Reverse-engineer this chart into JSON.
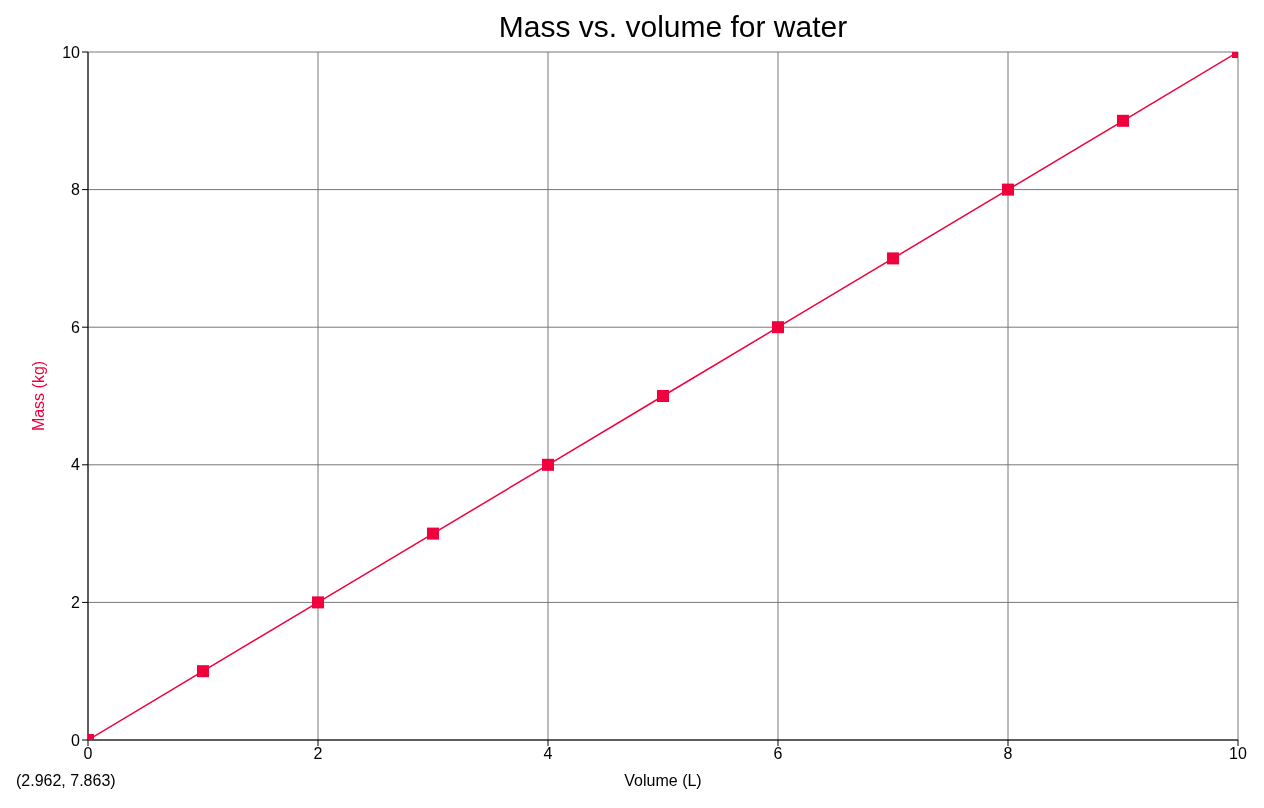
{
  "chart_data": {
    "type": "line",
    "title": "Mass vs. volume for water",
    "xlabel": "Volume (L)",
    "ylabel": "Mass (kg)",
    "x": [
      0,
      1,
      2,
      3,
      4,
      5,
      6,
      7,
      8,
      9,
      10
    ],
    "series": [
      {
        "color": "#f0003c",
        "values": [
          0,
          1,
          2,
          3,
          4,
          5,
          6,
          7,
          8,
          9,
          10
        ]
      }
    ],
    "xlim": [
      0,
      10
    ],
    "xticks": [
      0,
      2,
      4,
      6,
      8,
      10
    ],
    "ylim": [
      0,
      10
    ],
    "yticks": [
      0,
      2,
      4,
      6,
      8,
      10
    ],
    "grid": true,
    "marker": "square",
    "line_style": "solid",
    "annotations": [
      "(2.962, 7.863)"
    ]
  }
}
